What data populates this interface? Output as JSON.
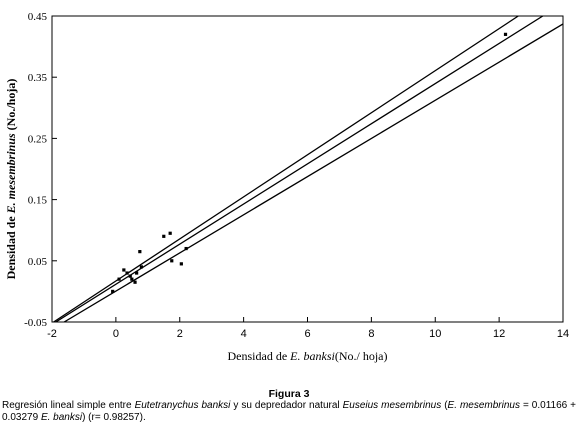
{
  "chart_data": {
    "type": "scatter",
    "title": "",
    "xlabel": {
      "prefix": "Densidad de ",
      "italic": "E. banksi",
      "suffix": "(No./ hoja)"
    },
    "ylabel": {
      "prefix": "Densidad de ",
      "italic": "E. mesembrinus",
      "suffix": " (No./hoja)"
    },
    "xlim": [
      -2,
      14
    ],
    "ylim": [
      -0.05,
      0.45
    ],
    "xticks": [
      -2,
      0,
      2,
      4,
      6,
      8,
      10,
      12,
      14
    ],
    "yticks": [
      -0.05,
      0.05,
      0.15,
      0.25,
      0.35,
      0.45
    ],
    "ytick_labels": [
      "-0.05",
      "0.05",
      "0.15",
      "0.25",
      "0.35",
      "0.45"
    ],
    "regression": {
      "intercept": 0.01166,
      "slope": 0.03279
    },
    "confidence_band": {
      "lower": [
        [
          -1.62,
          -0.05
        ],
        [
          14.0,
          0.437
        ]
      ],
      "upper": [
        [
          -1.95,
          -0.05
        ],
        [
          12.6,
          0.45
        ]
      ]
    },
    "points": [
      {
        "x": -0.1,
        "y": 0.0
      },
      {
        "x": 0.1,
        "y": 0.02
      },
      {
        "x": 0.25,
        "y": 0.035
      },
      {
        "x": 0.35,
        "y": 0.03
      },
      {
        "x": 0.45,
        "y": 0.025
      },
      {
        "x": 0.5,
        "y": 0.02
      },
      {
        "x": 0.6,
        "y": 0.015
      },
      {
        "x": 0.65,
        "y": 0.03
      },
      {
        "x": 0.75,
        "y": 0.065
      },
      {
        "x": 0.8,
        "y": 0.04
      },
      {
        "x": 1.5,
        "y": 0.09
      },
      {
        "x": 1.7,
        "y": 0.095
      },
      {
        "x": 1.75,
        "y": 0.05
      },
      {
        "x": 2.05,
        "y": 0.045
      },
      {
        "x": 2.2,
        "y": 0.07
      },
      {
        "x": 12.2,
        "y": 0.42
      }
    ]
  },
  "caption": {
    "title": "Figura 3",
    "segments": [
      {
        "text": "Regresión lineal simple entre ",
        "italic": false
      },
      {
        "text": "Eutetranychus banksi",
        "italic": true
      },
      {
        "text": " y su depredador natural ",
        "italic": false
      },
      {
        "text": "Euseius mesembrinus",
        "italic": true
      },
      {
        "text": " (",
        "italic": false
      },
      {
        "text": "E. mesembrinus",
        "italic": true
      },
      {
        "text": " = 0.01166 + 0.03279 ",
        "italic": false
      },
      {
        "text": "E. banksi",
        "italic": true
      },
      {
        "text": ") (r= 0.98257).",
        "italic": false
      }
    ]
  }
}
